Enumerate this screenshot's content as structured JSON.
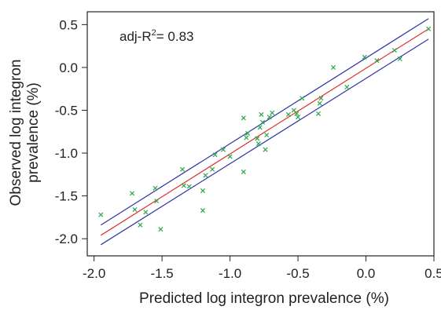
{
  "chart_data": {
    "type": "scatter",
    "title": "",
    "xlabel": "Predicted log integron prevalence (%)",
    "ylabel": "Observed log integron prevalence (%)",
    "ylabel_lines": [
      "Observed log integron",
      "prevalence (%)"
    ],
    "xlim": [
      -2.05,
      0.5
    ],
    "ylim": [
      -2.2,
      0.65
    ],
    "xticks": [
      -2.0,
      -1.5,
      -1.0,
      -0.5,
      0.0,
      0.5
    ],
    "xtick_labels": [
      "-2.0",
      "-1.5",
      "-1.0",
      "-0.5",
      "0.0",
      "0.5"
    ],
    "yticks": [
      -2.0,
      -1.5,
      -1.0,
      -0.5,
      0.0,
      0.5
    ],
    "ytick_labels": [
      "-2.0",
      "-1.5",
      "-1.0",
      "-0.5",
      "0.0",
      "0.5"
    ],
    "grid": false,
    "annotation": {
      "prefix": "adj-R",
      "superscript": "2",
      "suffix": "= 0.83"
    },
    "colors": {
      "points": "#27a745",
      "fit": "#e03030",
      "ci": "#2b35a8",
      "frame": "#222222"
    },
    "fit_line": {
      "x": [
        -1.95,
        0.46
      ],
      "y": [
        -1.96,
        0.45
      ]
    },
    "ci_upper": {
      "x": [
        -1.95,
        0.46
      ],
      "y": [
        -1.84,
        0.57
      ]
    },
    "ci_lower": {
      "x": [
        -1.95,
        0.46
      ],
      "y": [
        -2.07,
        0.33
      ]
    },
    "points": [
      {
        "x": -1.95,
        "y": -1.72
      },
      {
        "x": -1.72,
        "y": -1.47
      },
      {
        "x": -1.7,
        "y": -1.66
      },
      {
        "x": -1.66,
        "y": -1.84
      },
      {
        "x": -1.62,
        "y": -1.69
      },
      {
        "x": -1.55,
        "y": -1.41
      },
      {
        "x": -1.54,
        "y": -1.56
      },
      {
        "x": -1.51,
        "y": -1.89
      },
      {
        "x": -1.35,
        "y": -1.19
      },
      {
        "x": -1.34,
        "y": -1.38
      },
      {
        "x": -1.3,
        "y": -1.39
      },
      {
        "x": -1.2,
        "y": -1.67
      },
      {
        "x": -1.2,
        "y": -1.44
      },
      {
        "x": -1.18,
        "y": -1.26
      },
      {
        "x": -1.13,
        "y": -1.19
      },
      {
        "x": -1.11,
        "y": -1.02
      },
      {
        "x": -1.05,
        "y": -0.96
      },
      {
        "x": -1.0,
        "y": -1.04
      },
      {
        "x": -0.9,
        "y": -1.22
      },
      {
        "x": -0.9,
        "y": -0.59
      },
      {
        "x": -0.88,
        "y": -0.82
      },
      {
        "x": -0.87,
        "y": -0.77
      },
      {
        "x": -0.8,
        "y": -0.83
      },
      {
        "x": -0.79,
        "y": -0.89
      },
      {
        "x": -0.78,
        "y": -0.7
      },
      {
        "x": -0.77,
        "y": -0.55
      },
      {
        "x": -0.76,
        "y": -0.64
      },
      {
        "x": -0.74,
        "y": -0.96
      },
      {
        "x": -0.73,
        "y": -0.79
      },
      {
        "x": -0.71,
        "y": -0.58
      },
      {
        "x": -0.69,
        "y": -0.53
      },
      {
        "x": -0.57,
        "y": -0.55
      },
      {
        "x": -0.53,
        "y": -0.5
      },
      {
        "x": -0.51,
        "y": -0.54
      },
      {
        "x": -0.5,
        "y": -0.58
      },
      {
        "x": -0.47,
        "y": -0.36
      },
      {
        "x": -0.35,
        "y": -0.54
      },
      {
        "x": -0.34,
        "y": -0.42
      },
      {
        "x": -0.33,
        "y": -0.36
      },
      {
        "x": -0.24,
        "y": 0.0
      },
      {
        "x": -0.14,
        "y": -0.23
      },
      {
        "x": -0.01,
        "y": 0.12
      },
      {
        "x": 0.08,
        "y": 0.08
      },
      {
        "x": 0.21,
        "y": 0.2
      },
      {
        "x": 0.25,
        "y": 0.1
      },
      {
        "x": 0.46,
        "y": 0.45
      }
    ]
  }
}
